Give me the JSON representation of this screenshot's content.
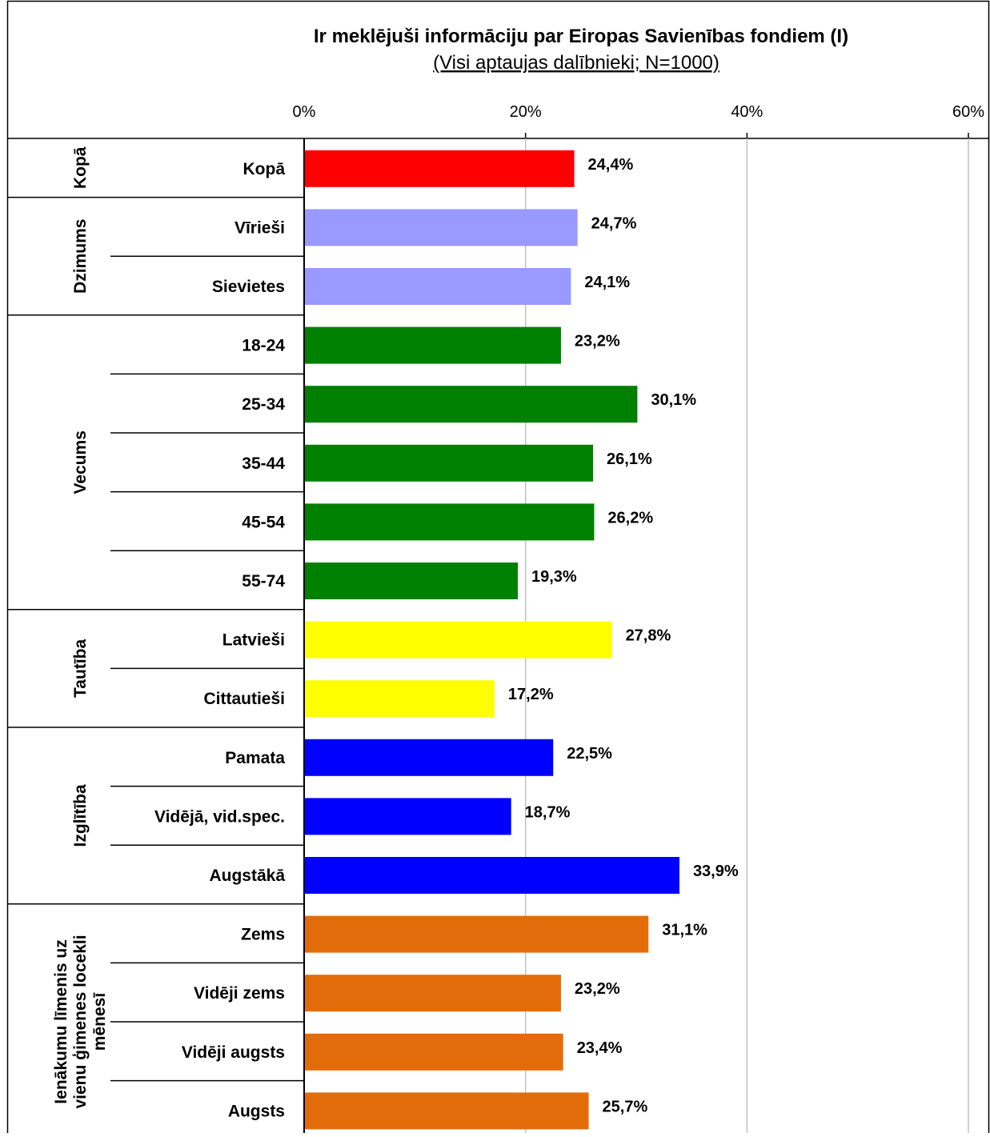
{
  "chart_data": {
    "type": "bar",
    "orientation": "horizontal",
    "title": "Ir meklējuši informāciju par Eiropas Savienības fondiem (I)",
    "subtitle": "(Visi aptaujas dalībnieki;  N=1000)",
    "xlim": [
      0,
      60
    ],
    "ticks": [
      "0%",
      "20%",
      "40%",
      "60%"
    ],
    "tick_values": [
      0,
      20,
      40,
      60
    ],
    "grid": true,
    "groups": [
      {
        "label": "Kopā",
        "color": "#ff0000",
        "items": [
          {
            "category": "Kopā",
            "value": 24.4,
            "label": "24,4%"
          }
        ]
      },
      {
        "label": "Dzimums",
        "color": "#9999ff",
        "items": [
          {
            "category": "Vīrieši",
            "value": 24.7,
            "label": "24,7%"
          },
          {
            "category": "Sievietes",
            "value": 24.1,
            "label": "24,1%"
          }
        ]
      },
      {
        "label": "Vecums",
        "color": "#008000",
        "items": [
          {
            "category": "18-24",
            "value": 23.2,
            "label": "23,2%"
          },
          {
            "category": "25-34",
            "value": 30.1,
            "label": "30,1%"
          },
          {
            "category": "35-44",
            "value": 26.1,
            "label": "26,1%"
          },
          {
            "category": "45-54",
            "value": 26.2,
            "label": "26,2%"
          },
          {
            "category": "55-74",
            "value": 19.3,
            "label": "19,3%"
          }
        ]
      },
      {
        "label": "Tautība",
        "color": "#ffff00",
        "items": [
          {
            "category": "Latvieši",
            "value": 27.8,
            "label": "27,8%"
          },
          {
            "category": "Cittautieši",
            "value": 17.2,
            "label": "17,2%"
          }
        ]
      },
      {
        "label": "Izglītība",
        "color": "#0000ff",
        "items": [
          {
            "category": "Pamata",
            "value": 22.5,
            "label": "22,5%"
          },
          {
            "category": "Vidējā, vid.spec.",
            "value": 18.7,
            "label": "18,7%"
          },
          {
            "category": "Augstākā",
            "value": 33.9,
            "label": "33,9%"
          }
        ]
      },
      {
        "label": "Ienākumu līmenis uz vienu ģimenes locekli mēnesī",
        "label_lines": [
          "Ienākumu līmenis uz",
          "vienu ģimenes locekli",
          "mēnesī"
        ],
        "color": "#e36c0a",
        "items": [
          {
            "category": "Zems",
            "value": 31.1,
            "label": "31,1%"
          },
          {
            "category": "Vidēji zems",
            "value": 23.2,
            "label": "23,2%"
          },
          {
            "category": "Vidēji augsts",
            "value": 23.4,
            "label": "23,4%"
          },
          {
            "category": "Augsts",
            "value": 25.7,
            "label": "25,7%"
          }
        ]
      }
    ]
  }
}
